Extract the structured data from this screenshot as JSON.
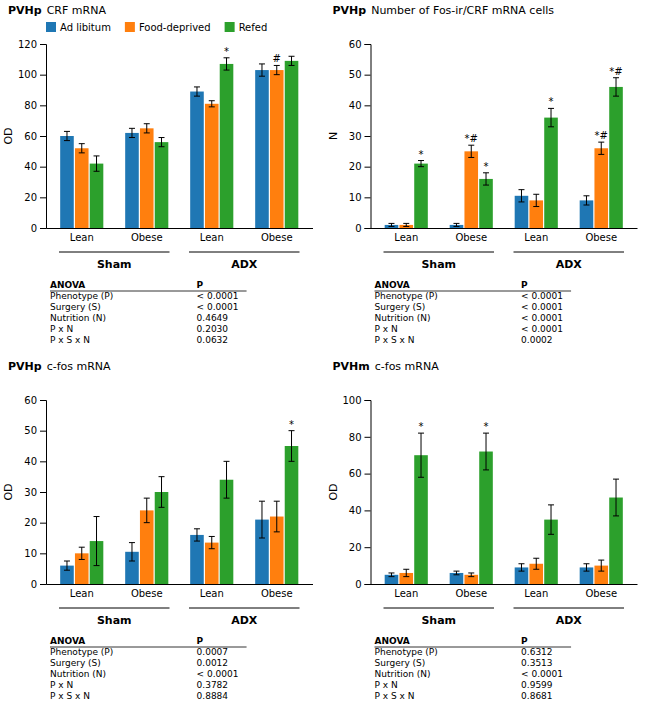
{
  "chart_data": [
    {
      "type": "bar",
      "title": "PVHp",
      "subtitle": "CRF mRNA",
      "ylabel": "OD",
      "categories": [
        "Lean",
        "Obese",
        "Lean",
        "Obese"
      ],
      "super_categories": [
        "Sham",
        "ADX"
      ],
      "series": [
        {
          "name": "Ad libitum",
          "values": [
            60,
            62,
            89,
            103
          ],
          "errors": [
            3,
            3,
            3,
            4
          ]
        },
        {
          "name": "Food-deprived",
          "values": [
            52,
            65,
            81,
            103
          ],
          "errors": [
            3,
            3,
            2,
            3
          ],
          "annotations": [
            null,
            null,
            null,
            "#"
          ]
        },
        {
          "name": "Refed",
          "values": [
            42,
            56,
            107,
            109
          ],
          "errors": [
            5,
            3,
            4,
            3
          ],
          "annotations": [
            null,
            null,
            "*",
            null
          ]
        }
      ],
      "ylim": [
        0,
        120
      ],
      "yticks": [
        0,
        20,
        40,
        60,
        80,
        100,
        120
      ],
      "grid": false,
      "legend": "top",
      "table": [
        [
          "ANOVA",
          "P"
        ],
        [
          "Phenotype (P)",
          "< 0.0001"
        ],
        [
          "Surgery (S)",
          "< 0.0001"
        ],
        [
          "Nutrition (N)",
          "0.4649"
        ],
        [
          "P x N",
          "0.2030"
        ],
        [
          "P x S x N",
          "0.0632"
        ]
      ]
    },
    {
      "type": "bar",
      "title": "PVHp",
      "subtitle": "Number of Fos-ir/CRF mRNA cells",
      "ylabel": "N",
      "categories": [
        "Lean",
        "Obese",
        "Lean",
        "Obese"
      ],
      "super_categories": [
        "Sham",
        "ADX"
      ],
      "series": [
        {
          "values": [
            1,
            1,
            10.5,
            9
          ],
          "errors": [
            0.5,
            0.5,
            2,
            1.5
          ]
        },
        {
          "values": [
            1,
            25,
            9,
            26
          ],
          "errors": [
            0.5,
            2,
            2,
            2
          ],
          "annotations": [
            null,
            "*#",
            null,
            "*#"
          ]
        },
        {
          "values": [
            21,
            16,
            36,
            46
          ],
          "errors": [
            1,
            2,
            3,
            3
          ],
          "annotations": [
            "*",
            "*",
            "*",
            "*#"
          ]
        }
      ],
      "ylim": [
        0,
        60
      ],
      "yticks": [
        0,
        10,
        20,
        30,
        40,
        50,
        60
      ],
      "grid": false,
      "table": [
        [
          "ANOVA",
          "P"
        ],
        [
          "Phenotype (P)",
          "< 0.0001"
        ],
        [
          "Surgery (S)",
          "< 0.0001"
        ],
        [
          "Nutrition (N)",
          "< 0.0001"
        ],
        [
          "P x N",
          "< 0.0001"
        ],
        [
          "P x S x N",
          "0.0002"
        ]
      ]
    },
    {
      "type": "bar",
      "title": "PVHp",
      "subtitle": "c-fos mRNA",
      "ylabel": "OD",
      "categories": [
        "Lean",
        "Obese",
        "Lean",
        "Obese"
      ],
      "super_categories": [
        "Sham",
        "ADX"
      ],
      "series": [
        {
          "values": [
            6,
            10.5,
            16,
            21
          ],
          "errors": [
            1.5,
            3,
            2,
            6
          ]
        },
        {
          "values": [
            10,
            24,
            13.5,
            22
          ],
          "errors": [
            2,
            4,
            2,
            5
          ]
        },
        {
          "values": [
            14,
            30,
            34,
            45
          ],
          "errors": [
            8,
            5,
            6,
            5
          ],
          "annotations": [
            null,
            null,
            null,
            "*"
          ]
        }
      ],
      "ylim": [
        0,
        60
      ],
      "yticks": [
        0,
        10,
        20,
        30,
        40,
        50,
        60
      ],
      "grid": false,
      "table": [
        [
          "ANOVA",
          "P"
        ],
        [
          "Phenotype (P)",
          "0.0007"
        ],
        [
          "Surgery (S)",
          "0.0012"
        ],
        [
          "Nutrition (N)",
          "< 0.0001"
        ],
        [
          "P x N",
          "0.3782"
        ],
        [
          "P x S x N",
          "0.8884"
        ]
      ]
    },
    {
      "type": "bar",
      "title": "PVHm",
      "subtitle": "c-fos mRNA",
      "ylabel": "OD",
      "categories": [
        "Lean",
        "Obese",
        "Lean",
        "Obese"
      ],
      "super_categories": [
        "Sham",
        "ADX"
      ],
      "series": [
        {
          "values": [
            5,
            6,
            9,
            9
          ],
          "errors": [
            1,
            1,
            2,
            2
          ]
        },
        {
          "values": [
            6,
            5,
            11,
            10
          ],
          "errors": [
            2,
            1,
            3,
            3
          ]
        },
        {
          "values": [
            70,
            72,
            35,
            47
          ],
          "errors": [
            12,
            10,
            8,
            10
          ],
          "annotations": [
            "*",
            "*",
            null,
            null
          ]
        }
      ],
      "ylim": [
        0,
        100
      ],
      "yticks": [
        0,
        20,
        40,
        60,
        80,
        100
      ],
      "grid": false,
      "table": [
        [
          "ANOVA",
          "P"
        ],
        [
          "Phenotype (P)",
          "0.6312"
        ],
        [
          "Surgery (S)",
          "0.3513"
        ],
        [
          "Nutrition (N)",
          "< 0.0001"
        ],
        [
          "P x N",
          "0.9599"
        ],
        [
          "P x S x N",
          "0.8681"
        ]
      ]
    }
  ]
}
